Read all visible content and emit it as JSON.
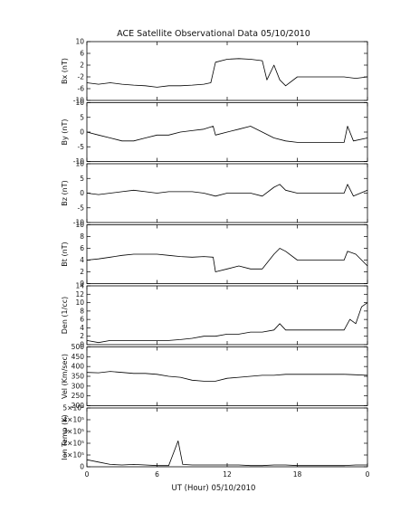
{
  "chart_data": {
    "type": "line",
    "title": "ACE Satellite Observational Data   05/10/2010",
    "xlabel": "UT (Hour)   05/10/2010",
    "x_ticks": [
      "0",
      "6",
      "12",
      "18",
      "0"
    ],
    "xlim": [
      0,
      24
    ],
    "panels": [
      {
        "ylabel": "Bx (nT)",
        "ylim": [
          -10,
          10
        ],
        "y_ticks": [
          {
            "v": -10,
            "t": "-10"
          },
          {
            "v": -6,
            "t": "-6"
          },
          {
            "v": -2,
            "t": "-2"
          },
          {
            "v": 2,
            "t": "2"
          },
          {
            "v": 6,
            "t": "6"
          },
          {
            "v": 10,
            "t": "10"
          }
        ],
        "points": [
          [
            0,
            -4
          ],
          [
            1,
            -4.5
          ],
          [
            2,
            -4
          ],
          [
            3,
            -4.5
          ],
          [
            4,
            -4.8
          ],
          [
            5,
            -5
          ],
          [
            6,
            -5.5
          ],
          [
            7,
            -5
          ],
          [
            8,
            -5
          ],
          [
            9,
            -4.8
          ],
          [
            10,
            -4.5
          ],
          [
            10.6,
            -4
          ],
          [
            11,
            3
          ],
          [
            12,
            4
          ],
          [
            13,
            4.2
          ],
          [
            14,
            4
          ],
          [
            15,
            3.5
          ],
          [
            15.4,
            -3
          ],
          [
            16,
            2
          ],
          [
            16.5,
            -3
          ],
          [
            17,
            -5
          ],
          [
            18,
            -2
          ],
          [
            20,
            -2
          ],
          [
            22,
            -2
          ],
          [
            23,
            -2.5
          ],
          [
            24,
            -2
          ]
        ]
      },
      {
        "ylabel": "By (nT)",
        "ylim": [
          -10,
          10
        ],
        "y_ticks": [
          {
            "v": -10,
            "t": "-10"
          },
          {
            "v": -5,
            "t": "-5"
          },
          {
            "v": 0,
            "t": "0"
          },
          {
            "v": 5,
            "t": "5"
          },
          {
            "v": 10,
            "t": "10"
          }
        ],
        "points": [
          [
            0,
            0
          ],
          [
            1,
            -1
          ],
          [
            2,
            -2
          ],
          [
            3,
            -3
          ],
          [
            4,
            -3
          ],
          [
            5,
            -2
          ],
          [
            6,
            -1
          ],
          [
            7,
            -1
          ],
          [
            8,
            0
          ],
          [
            9,
            0.5
          ],
          [
            10,
            1
          ],
          [
            10.8,
            2
          ],
          [
            11,
            -1
          ],
          [
            12,
            0
          ],
          [
            13,
            1
          ],
          [
            14,
            2
          ],
          [
            15,
            0
          ],
          [
            16,
            -2
          ],
          [
            17,
            -3
          ],
          [
            18,
            -3.5
          ],
          [
            20,
            -3.5
          ],
          [
            22,
            -3.5
          ],
          [
            22.3,
            2
          ],
          [
            22.8,
            -3
          ],
          [
            24,
            -2
          ]
        ]
      },
      {
        "ylabel": "Bz (nT)",
        "ylim": [
          -10,
          10
        ],
        "y_ticks": [
          {
            "v": -10,
            "t": "-10"
          },
          {
            "v": -5,
            "t": "-5"
          },
          {
            "v": 0,
            "t": "0"
          },
          {
            "v": 5,
            "t": "5"
          },
          {
            "v": 10,
            "t": "10"
          }
        ],
        "points": [
          [
            0,
            0
          ],
          [
            1,
            -0.5
          ],
          [
            2,
            0
          ],
          [
            3,
            0.5
          ],
          [
            4,
            1
          ],
          [
            5,
            0.5
          ],
          [
            6,
            0
          ],
          [
            7,
            0.5
          ],
          [
            8,
            0.5
          ],
          [
            9,
            0.5
          ],
          [
            10,
            0
          ],
          [
            11,
            -1
          ],
          [
            12,
            0
          ],
          [
            13,
            0
          ],
          [
            14,
            0
          ],
          [
            15,
            -1
          ],
          [
            16,
            2
          ],
          [
            16.5,
            3
          ],
          [
            17,
            1
          ],
          [
            18,
            0
          ],
          [
            20,
            0
          ],
          [
            22,
            0
          ],
          [
            22.3,
            3
          ],
          [
            22.8,
            -1
          ],
          [
            24,
            1
          ]
        ]
      },
      {
        "ylabel": "Bt (nT)",
        "ylim": [
          0,
          10
        ],
        "y_ticks": [
          {
            "v": 0,
            "t": "0"
          },
          {
            "v": 2,
            "t": "2"
          },
          {
            "v": 4,
            "t": "4"
          },
          {
            "v": 6,
            "t": "6"
          },
          {
            "v": 8,
            "t": "8"
          },
          {
            "v": 10,
            "t": "10"
          }
        ],
        "points": [
          [
            0,
            4
          ],
          [
            1,
            4.2
          ],
          [
            2,
            4.5
          ],
          [
            3,
            4.8
          ],
          [
            4,
            5
          ],
          [
            5,
            5
          ],
          [
            6,
            5
          ],
          [
            7,
            4.8
          ],
          [
            8,
            4.6
          ],
          [
            9,
            4.5
          ],
          [
            10,
            4.6
          ],
          [
            10.8,
            4.5
          ],
          [
            11,
            2
          ],
          [
            12,
            2.5
          ],
          [
            13,
            3
          ],
          [
            14,
            2.5
          ],
          [
            15,
            2.5
          ],
          [
            16,
            5
          ],
          [
            16.5,
            6
          ],
          [
            17,
            5.5
          ],
          [
            18,
            4
          ],
          [
            20,
            4
          ],
          [
            22,
            4
          ],
          [
            22.3,
            5.5
          ],
          [
            23,
            5
          ],
          [
            24,
            3
          ]
        ]
      },
      {
        "ylabel": "Den (1/cc)",
        "ylim": [
          0,
          14
        ],
        "y_ticks": [
          {
            "v": 0,
            "t": "0"
          },
          {
            "v": 2,
            "t": "2"
          },
          {
            "v": 4,
            "t": "4"
          },
          {
            "v": 6,
            "t": "6"
          },
          {
            "v": 8,
            "t": "8"
          },
          {
            "v": 10,
            "t": "10"
          },
          {
            "v": 12,
            "t": "12"
          },
          {
            "v": 14,
            "t": "14"
          }
        ],
        "points": [
          [
            0,
            1
          ],
          [
            1,
            0.5
          ],
          [
            2,
            1
          ],
          [
            3,
            1
          ],
          [
            4,
            1
          ],
          [
            5,
            1
          ],
          [
            6,
            1
          ],
          [
            7,
            1
          ],
          [
            8,
            1.2
          ],
          [
            9,
            1.5
          ],
          [
            10,
            2
          ],
          [
            11,
            2
          ],
          [
            12,
            2.5
          ],
          [
            13,
            2.5
          ],
          [
            14,
            3
          ],
          [
            15,
            3
          ],
          [
            16,
            3.5
          ],
          [
            16.5,
            5
          ],
          [
            17,
            3.5
          ],
          [
            18,
            3.5
          ],
          [
            20,
            3.5
          ],
          [
            22,
            3.5
          ],
          [
            22.5,
            6
          ],
          [
            23,
            5
          ],
          [
            23.5,
            9
          ],
          [
            24,
            10
          ]
        ]
      },
      {
        "ylabel": "Vel (Km/sec)",
        "ylim": [
          200,
          500
        ],
        "y_ticks": [
          {
            "v": 200,
            "t": "200"
          },
          {
            "v": 250,
            "t": "250"
          },
          {
            "v": 300,
            "t": "300"
          },
          {
            "v": 350,
            "t": "350"
          },
          {
            "v": 400,
            "t": "400"
          },
          {
            "v": 450,
            "t": "450"
          },
          {
            "v": 500,
            "t": "500"
          }
        ],
        "points": [
          [
            0,
            370
          ],
          [
            1,
            368
          ],
          [
            2,
            375
          ],
          [
            3,
            370
          ],
          [
            4,
            365
          ],
          [
            5,
            365
          ],
          [
            6,
            360
          ],
          [
            7,
            350
          ],
          [
            8,
            345
          ],
          [
            9,
            330
          ],
          [
            10,
            325
          ],
          [
            11,
            325
          ],
          [
            12,
            340
          ],
          [
            13,
            345
          ],
          [
            14,
            350
          ],
          [
            15,
            355
          ],
          [
            16,
            355
          ],
          [
            17,
            360
          ],
          [
            18,
            360
          ],
          [
            20,
            360
          ],
          [
            22,
            360
          ],
          [
            23,
            358
          ],
          [
            24,
            355
          ]
        ]
      },
      {
        "ylabel": "Ion Temp (K)",
        "ylim": [
          0,
          500000
        ],
        "y_ticks": [
          {
            "v": 0,
            "t": "0"
          },
          {
            "v": 100000,
            "t": "1×10⁵"
          },
          {
            "v": 200000,
            "t": "2×10⁵"
          },
          {
            "v": 300000,
            "t": "3×10⁵"
          },
          {
            "v": 400000,
            "t": "4×10⁵"
          },
          {
            "v": 500000,
            "t": "5×10⁵"
          }
        ],
        "points": [
          [
            0,
            60000
          ],
          [
            1,
            40000
          ],
          [
            2,
            20000
          ],
          [
            3,
            15000
          ],
          [
            4,
            20000
          ],
          [
            5,
            15000
          ],
          [
            6,
            10000
          ],
          [
            7,
            10000
          ],
          [
            7.8,
            220000
          ],
          [
            8.2,
            20000
          ],
          [
            9,
            15000
          ],
          [
            10,
            15000
          ],
          [
            11,
            15000
          ],
          [
            12,
            15000
          ],
          [
            13,
            15000
          ],
          [
            14,
            10000
          ],
          [
            15,
            10000
          ],
          [
            16,
            15000
          ],
          [
            17,
            15000
          ],
          [
            18,
            10000
          ],
          [
            20,
            10000
          ],
          [
            22,
            10000
          ],
          [
            23,
            15000
          ],
          [
            24,
            15000
          ]
        ]
      }
    ]
  }
}
